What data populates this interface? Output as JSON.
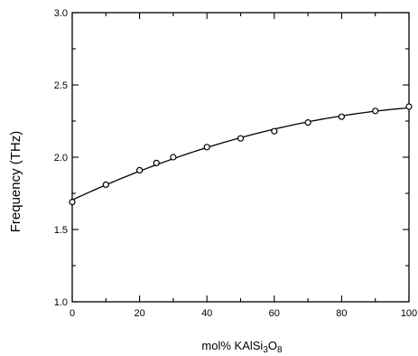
{
  "chart_data": {
    "type": "line",
    "title": "",
    "xlabel": "mol%  KAlSi3O8",
    "xlabel_parts": {
      "prefix": "mol%  KAlSi",
      "sub1": "3",
      "mid": "O",
      "sub2": "8"
    },
    "ylabel": "Frequency  (THz)",
    "xlim": [
      0,
      100
    ],
    "ylim": [
      1.0,
      3.0
    ],
    "xticks": [
      0,
      20,
      40,
      60,
      80,
      100
    ],
    "yticks": [
      1.0,
      1.5,
      2.0,
      2.5,
      3.0
    ],
    "xtick_labels": [
      "0",
      "20",
      "40",
      "60",
      "80",
      "100"
    ],
    "ytick_labels": [
      "1.0",
      "1.5",
      "2.0",
      "2.5",
      "3.0"
    ],
    "grid": false,
    "series": [
      {
        "x": [
          0,
          10,
          20,
          25,
          30,
          40,
          50,
          60,
          70,
          80,
          90,
          100
        ],
        "y": [
          1.69,
          1.81,
          1.91,
          1.96,
          2.0,
          2.07,
          2.13,
          2.18,
          2.24,
          2.28,
          2.32,
          2.35
        ]
      }
    ],
    "marker": "open-circle",
    "color": "#000000"
  }
}
